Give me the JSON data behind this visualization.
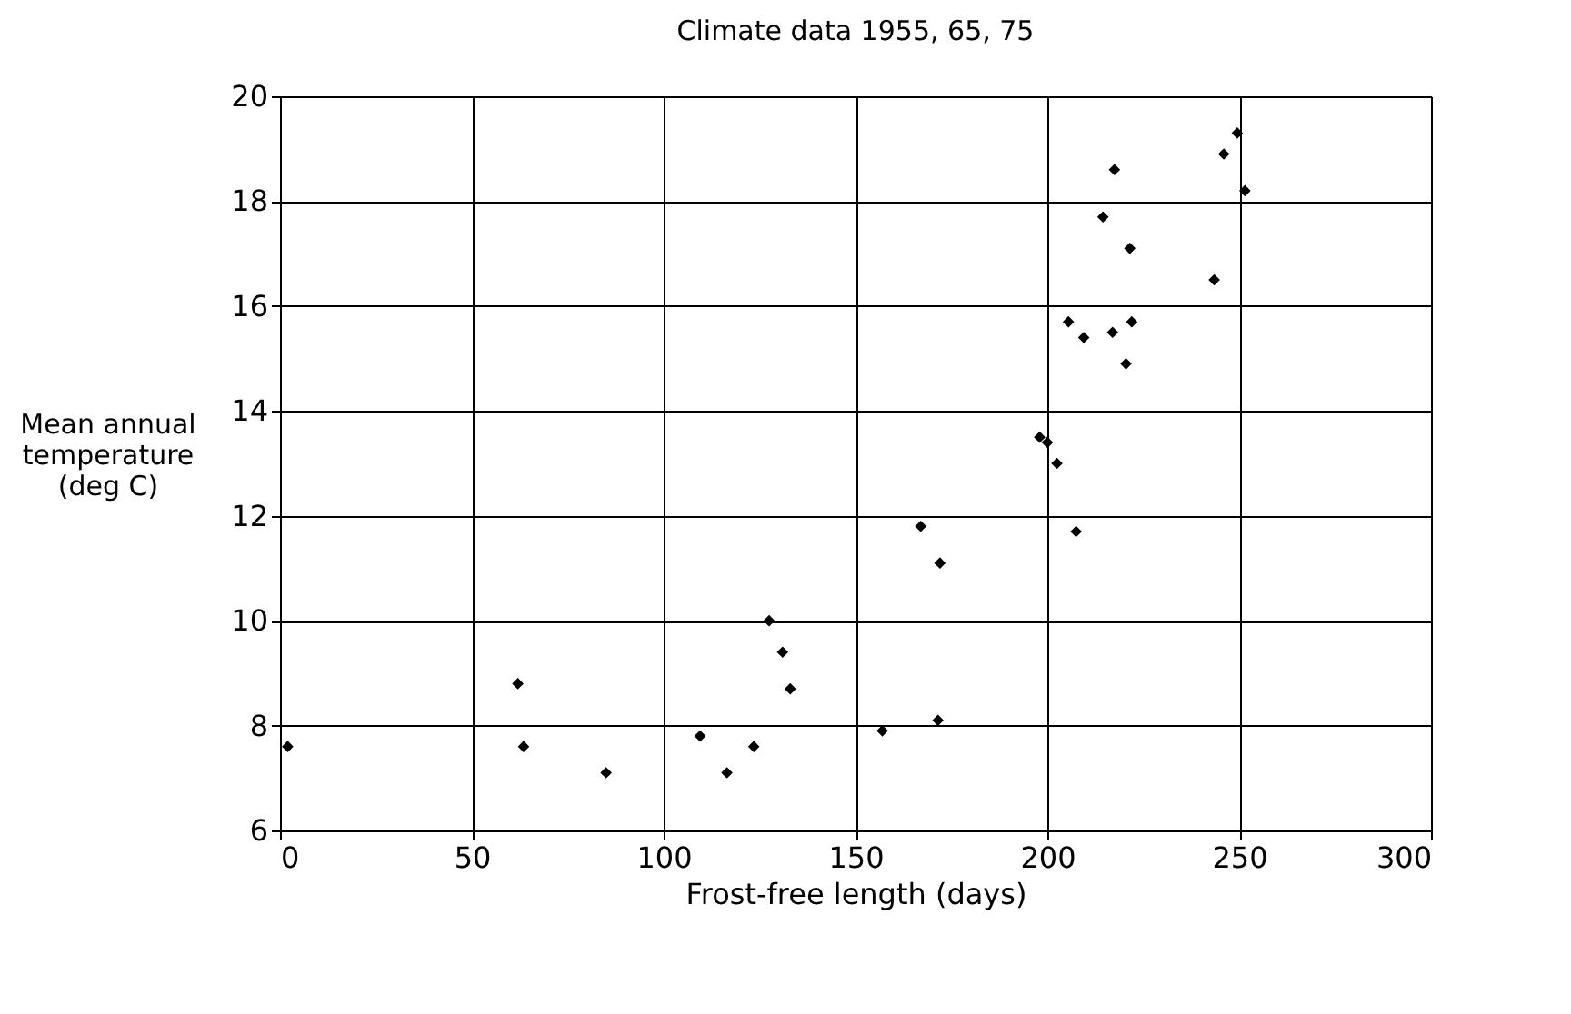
{
  "chart_data": {
    "type": "scatter",
    "title": "Climate data 1955, 65, 75",
    "xlabel": "Frost-free length (days)",
    "ylabel": "Mean annual\ntemperature\n(deg C)",
    "x": [
      2,
      62,
      63.5,
      85,
      109.5,
      116.5,
      123.5,
      127.5,
      131,
      133,
      157,
      171.5,
      172,
      167,
      198,
      200,
      202.5,
      207.5,
      205.5,
      209.5,
      217,
      222,
      220.5,
      214.5,
      221.5,
      217.5,
      243.5,
      246,
      249.5,
      251.5
    ],
    "values": [
      7.6,
      8.8,
      7.6,
      7.1,
      7.8,
      7.1,
      7.6,
      10.0,
      9.4,
      8.7,
      7.9,
      8.1,
      11.1,
      11.8,
      13.5,
      13.4,
      13.0,
      11.7,
      15.7,
      15.4,
      15.5,
      15.7,
      14.9,
      17.7,
      17.1,
      18.6,
      16.5,
      18.9,
      19.3,
      18.2
    ],
    "color": "#000000",
    "marker": "diamond",
    "xlim": [
      0,
      300
    ],
    "xticks": [
      0,
      50,
      100,
      150,
      200,
      250,
      300
    ],
    "ylim": [
      6,
      20
    ],
    "yticks": [
      6,
      8,
      10,
      12,
      14,
      16,
      18,
      20
    ],
    "grid": true
  }
}
